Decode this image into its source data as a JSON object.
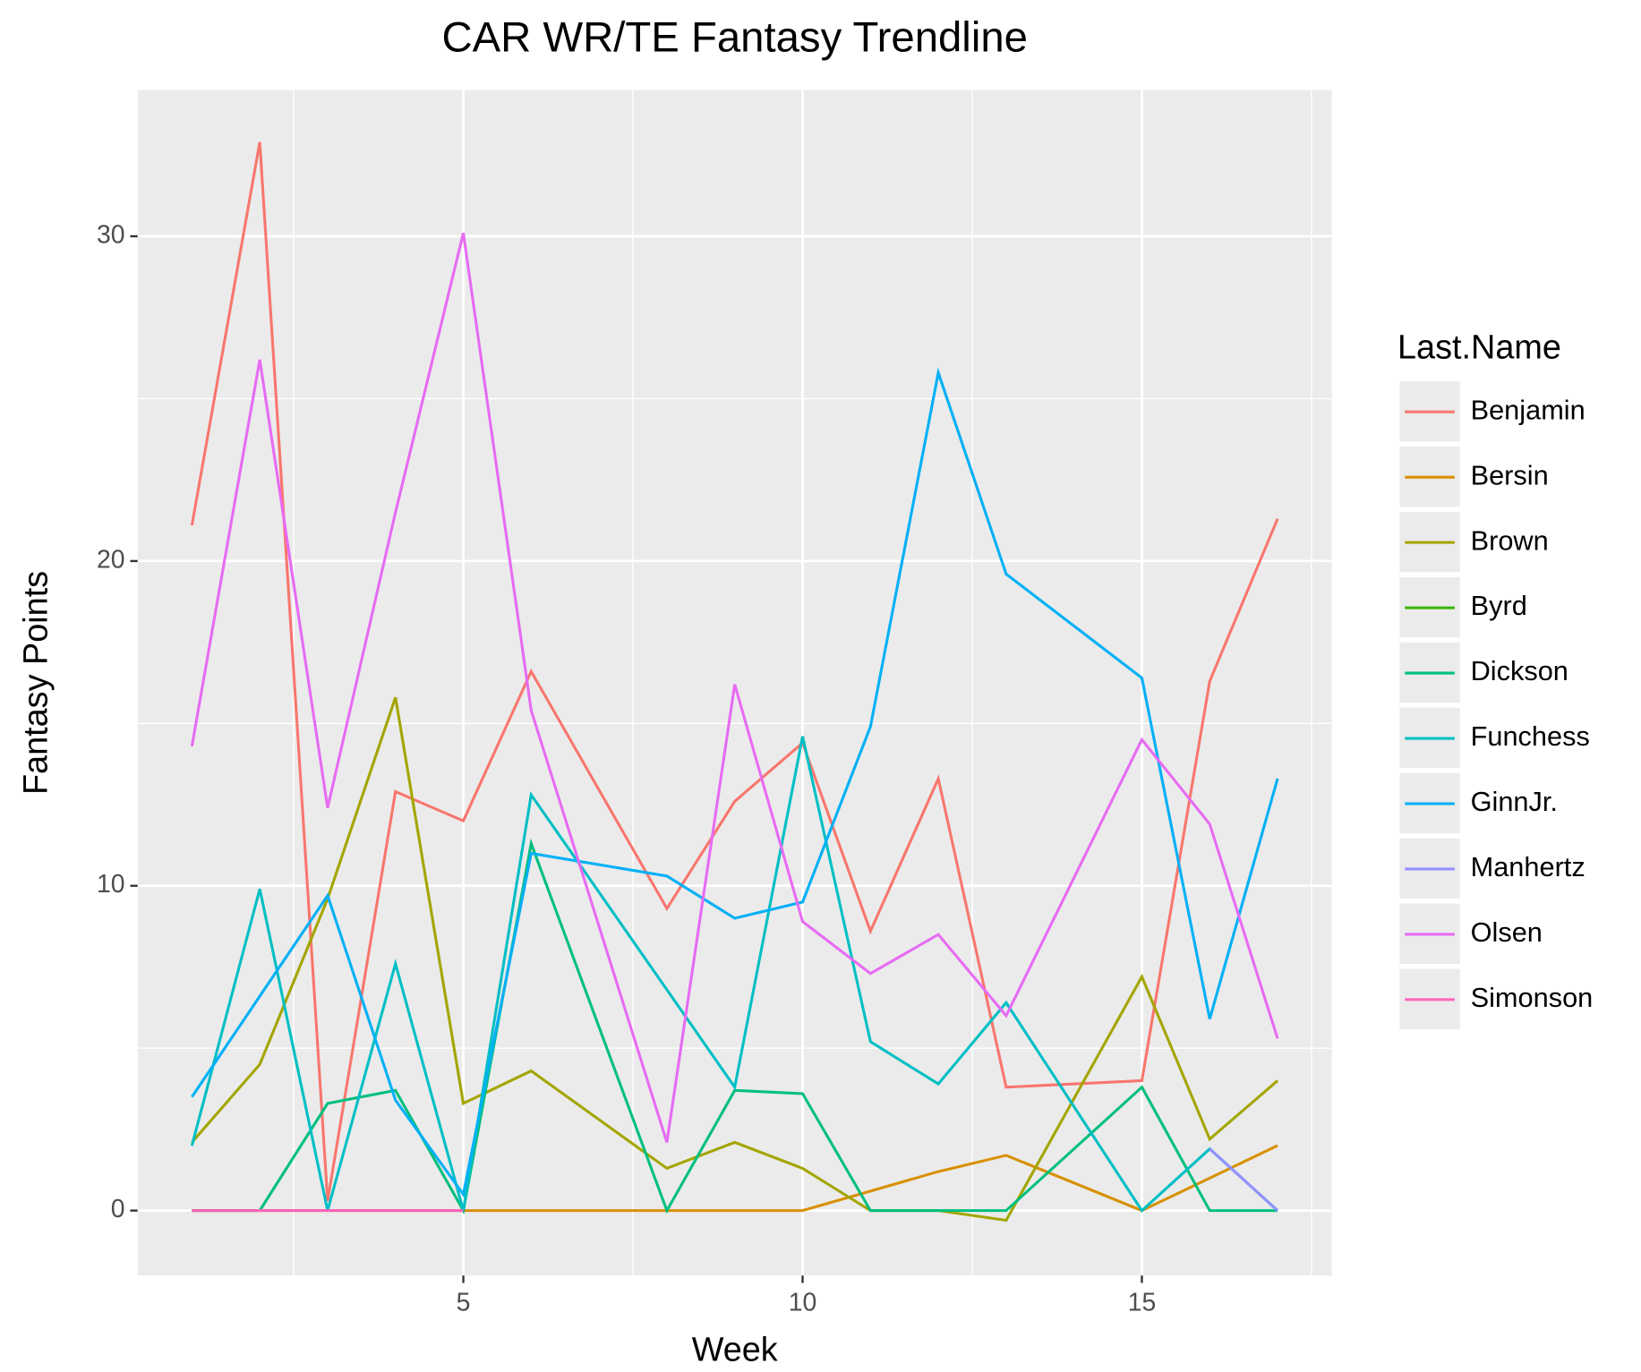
{
  "chart_data": {
    "type": "line",
    "title": "CAR WR/TE Fantasy Trendline",
    "x_label": "Week",
    "y_label": "Fantasy Points",
    "legend_title": "Last.Name",
    "xlim": [
      0.2,
      17.8
    ],
    "xticks": [
      5,
      10,
      15
    ],
    "ylim": [
      -2,
      34.5
    ],
    "yticks": [
      0,
      10,
      20,
      30
    ],
    "grid": true,
    "legend": "right",
    "series": [
      {
        "name": "Benjamin",
        "color": "#F8766D",
        "x": [
          1,
          2,
          3,
          4,
          5,
          6,
          8,
          9,
          10,
          11,
          12,
          13,
          15,
          16,
          17
        ],
        "values": [
          21.1,
          32.9,
          0.3,
          12.9,
          12.0,
          16.6,
          9.3,
          12.6,
          14.4,
          8.6,
          13.3,
          3.8,
          4.0,
          16.3,
          21.3
        ]
      },
      {
        "name": "Bersin",
        "color": "#D89000",
        "x": [
          1,
          2,
          3,
          4,
          5,
          6,
          8,
          9,
          10,
          11,
          12,
          13,
          15,
          16,
          17
        ],
        "values": [
          0,
          0,
          0,
          0,
          0,
          0,
          0,
          0,
          0,
          0.6,
          1.2,
          1.7,
          0,
          1.0,
          2.0
        ]
      },
      {
        "name": "Brown",
        "color": "#A3A500",
        "x": [
          1,
          2,
          3,
          4,
          5,
          6,
          8,
          9,
          10,
          11,
          12,
          13,
          15,
          16,
          17
        ],
        "values": [
          2.1,
          4.5,
          9.6,
          15.8,
          3.3,
          4.3,
          1.3,
          2.1,
          1.3,
          0,
          0,
          -0.3,
          7.2,
          2.2,
          4.0
        ]
      },
      {
        "name": "Byrd",
        "color": "#39B600",
        "x": [
          1,
          2
        ],
        "values": [
          0,
          0
        ]
      },
      {
        "name": "Dickson",
        "color": "#00BF7D",
        "x": [
          2,
          3,
          4,
          5,
          6,
          8,
          9,
          10,
          11,
          12,
          13,
          15,
          16,
          17
        ],
        "values": [
          0,
          3.3,
          3.7,
          0,
          11.3,
          0,
          3.7,
          3.6,
          0,
          0,
          0,
          3.8,
          0,
          0
        ]
      },
      {
        "name": "Funchess",
        "color": "#00BFC4",
        "x": [
          1,
          2,
          3,
          4,
          5,
          6,
          8,
          9,
          10,
          11,
          12,
          13,
          15,
          16,
          17
        ],
        "values": [
          2.0,
          9.9,
          0,
          7.6,
          0,
          12.8,
          6.8,
          3.8,
          14.6,
          5.2,
          3.9,
          6.4,
          0,
          1.9,
          0
        ]
      },
      {
        "name": "GinnJr.",
        "color": "#00B0F6",
        "x": [
          1,
          2,
          3,
          4,
          5,
          6,
          8,
          9,
          10,
          11,
          12,
          13,
          15,
          16,
          17
        ],
        "values": [
          3.5,
          6.6,
          9.7,
          3.4,
          0.5,
          11.0,
          10.3,
          9.0,
          9.5,
          14.9,
          25.8,
          19.6,
          16.4,
          5.9,
          13.3
        ]
      },
      {
        "name": "Manhertz",
        "color": "#9590FF",
        "x": [
          16,
          17
        ],
        "values": [
          1.9,
          0
        ]
      },
      {
        "name": "Olsen",
        "color": "#E76BF3",
        "x": [
          1,
          2,
          3,
          4,
          5,
          6,
          8,
          9,
          10,
          11,
          12,
          13,
          15,
          16,
          17
        ],
        "values": [
          14.3,
          26.2,
          12.4,
          21.5,
          30.1,
          15.4,
          2.1,
          16.2,
          8.9,
          7.3,
          8.5,
          6.0,
          14.5,
          11.9,
          5.3
        ]
      },
      {
        "name": "Simonson",
        "color": "#FF62BC",
        "x": [
          1,
          2,
          3,
          4,
          5
        ],
        "values": [
          0,
          0,
          0,
          0,
          0
        ]
      }
    ]
  }
}
